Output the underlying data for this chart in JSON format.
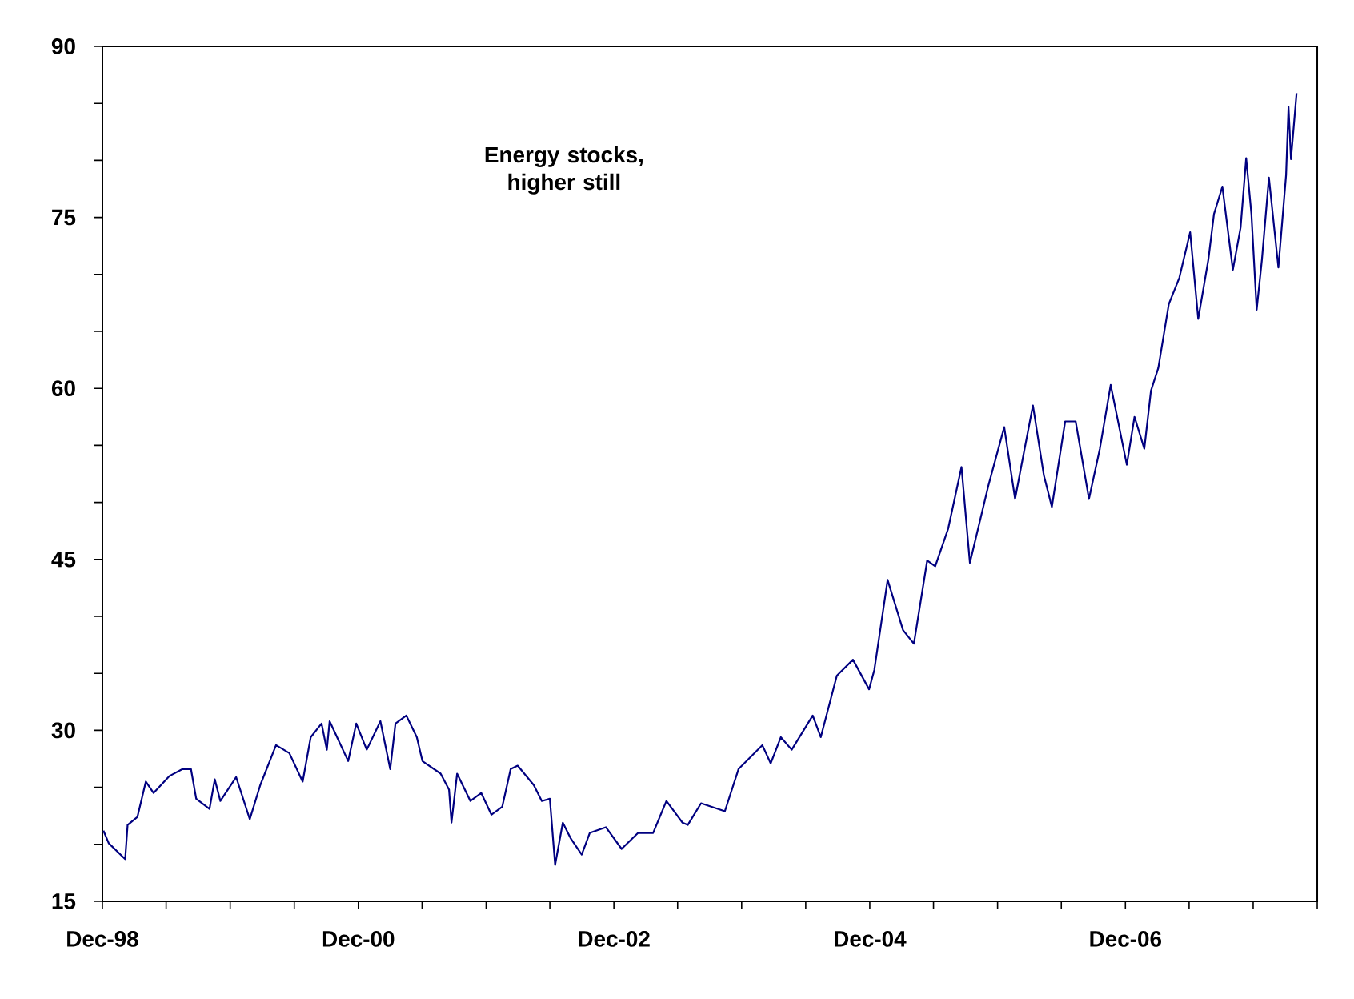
{
  "chart_data": {
    "type": "line",
    "annotations": [
      "Energy stocks, higher still"
    ],
    "xlim": [
      "1998-12",
      "2008-06"
    ],
    "xticks": [
      {
        "value": "1998-12",
        "label": "Dec-98"
      },
      {
        "value": "1999-06",
        "label": null
      },
      {
        "value": "1999-12",
        "label": null
      },
      {
        "value": "2000-06",
        "label": null
      },
      {
        "value": "2000-12",
        "label": "Dec-00"
      },
      {
        "value": "2001-06",
        "label": null
      },
      {
        "value": "2001-12",
        "label": null
      },
      {
        "value": "2002-06",
        "label": null
      },
      {
        "value": "2002-12",
        "label": "Dec-02"
      },
      {
        "value": "2003-06",
        "label": null
      },
      {
        "value": "2003-12",
        "label": null
      },
      {
        "value": "2004-06",
        "label": null
      },
      {
        "value": "2004-12",
        "label": "Dec-04"
      },
      {
        "value": "2005-06",
        "label": null
      },
      {
        "value": "2005-12",
        "label": null
      },
      {
        "value": "2006-06",
        "label": null
      },
      {
        "value": "2006-12",
        "label": "Dec-06"
      },
      {
        "value": "2007-06",
        "label": null
      },
      {
        "value": "2007-12",
        "label": null
      },
      {
        "value": "2008-06",
        "label": null
      }
    ],
    "ylim": [
      15,
      90
    ],
    "yticks": [
      15,
      {
        "value": 20,
        "label": null
      },
      {
        "value": 25,
        "label": null
      },
      30,
      {
        "value": 35,
        "label": null
      },
      {
        "value": 40,
        "label": null
      },
      45,
      {
        "value": 50,
        "label": null
      },
      {
        "value": 55,
        "label": null
      },
      60,
      {
        "value": 65,
        "label": null
      },
      {
        "value": 70,
        "label": null
      },
      75,
      {
        "value": 80,
        "label": null
      },
      {
        "value": 85,
        "label": null
      },
      90
    ],
    "grid": false,
    "marker": "none",
    "line_style": "solid",
    "series": [
      {
        "color": "#000080",
        "x": [
          "1998-12-04",
          "1998-12-19",
          "1999-02-04",
          "1999-02-11",
          "1999-03-11",
          "1999-04-04",
          "1999-04-26",
          "1999-06-11",
          "1999-07-18",
          "1999-08-11",
          "1999-08-26",
          "1999-10-03",
          "1999-10-18",
          "1999-11-03",
          "1999-12-18",
          "2000-01-26",
          "2000-02-25",
          "2000-04-10",
          "2000-05-18",
          "2000-06-25",
          "2000-07-18",
          "2000-08-18",
          "2000-09-02",
          "2000-09-10",
          "2000-11-02",
          "2000-11-25",
          "2000-12-25",
          "2001-02-02",
          "2001-03-02",
          "2001-03-17",
          "2001-04-17",
          "2001-05-17",
          "2001-06-02",
          "2001-07-24",
          "2001-08-17",
          "2001-08-24",
          "2001-09-09",
          "2001-10-17",
          "2001-11-17",
          "2001-12-16",
          "2002-01-16",
          "2002-02-09",
          "2002-03-01",
          "2002-04-16",
          "2002-05-09",
          "2002-06-01",
          "2002-06-16",
          "2002-07-08",
          "2002-07-31",
          "2002-08-31",
          "2002-09-23",
          "2002-11-08",
          "2002-12-23",
          "2003-02-08",
          "2003-03-23",
          "2003-04-30",
          "2003-06-15",
          "2003-06-30",
          "2003-08-07",
          "2003-10-14",
          "2003-11-22",
          "2004-01-29",
          "2004-02-22",
          "2004-03-22",
          "2004-04-22",
          "2004-06-21",
          "2004-07-14",
          "2004-08-29",
          "2004-10-14",
          "2004-11-29",
          "2004-12-14",
          "2005-01-21",
          "2005-03-06",
          "2005-04-06",
          "2005-05-14",
          "2005-06-06",
          "2005-07-13",
          "2005-08-20",
          "2005-09-13",
          "2005-11-05",
          "2005-12-20",
          "2006-01-20",
          "2006-02-05",
          "2006-03-12",
          "2006-04-12",
          "2006-05-05",
          "2006-06-12",
          "2006-07-12",
          "2006-08-19",
          "2006-09-19",
          "2006-10-20",
          "2006-12-05",
          "2006-12-27",
          "2007-01-24",
          "2007-02-12",
          "2007-03-05",
          "2007-04-04",
          "2007-05-04",
          "2007-06-04",
          "2007-06-27",
          "2007-07-26",
          "2007-08-11",
          "2007-09-04",
          "2007-10-04",
          "2007-10-26",
          "2007-11-11",
          "2007-11-26",
          "2007-12-11",
          "2007-12-26",
          "2008-01-15",
          "2008-02-11",
          "2008-03-04",
          "2008-03-11",
          "2008-03-18",
          "2008-04-03"
        ],
        "values": [
          21.2,
          20.1,
          18.7,
          21.7,
          22.4,
          25.5,
          24.5,
          26.0,
          26.6,
          26.6,
          24.0,
          23.1,
          25.7,
          23.8,
          25.9,
          22.2,
          25.2,
          28.7,
          28.0,
          25.5,
          29.4,
          30.6,
          28.3,
          30.8,
          27.3,
          30.6,
          28.3,
          30.8,
          26.6,
          30.6,
          31.3,
          29.4,
          27.3,
          26.2,
          24.8,
          21.9,
          26.2,
          23.8,
          24.5,
          22.6,
          23.3,
          26.6,
          26.9,
          25.2,
          23.8,
          24.0,
          18.2,
          21.9,
          20.5,
          19.1,
          21.0,
          21.5,
          19.6,
          21.0,
          21.0,
          23.8,
          21.9,
          21.7,
          23.6,
          22.9,
          26.6,
          28.7,
          27.1,
          29.4,
          28.3,
          31.3,
          29.4,
          34.8,
          36.2,
          33.6,
          35.3,
          43.2,
          38.8,
          37.6,
          44.9,
          44.4,
          47.7,
          53.1,
          44.7,
          51.5,
          56.6,
          50.3,
          52.9,
          58.5,
          52.4,
          49.6,
          57.1,
          57.1,
          50.3,
          54.7,
          60.3,
          53.3,
          57.5,
          54.7,
          59.8,
          61.8,
          67.4,
          69.7,
          73.7,
          66.1,
          71.3,
          75.3,
          77.7,
          70.4,
          74.1,
          80.2,
          75.3,
          66.9,
          71.3,
          78.5,
          70.6,
          78.7,
          84.7,
          80.1,
          85.9
        ]
      }
    ]
  }
}
